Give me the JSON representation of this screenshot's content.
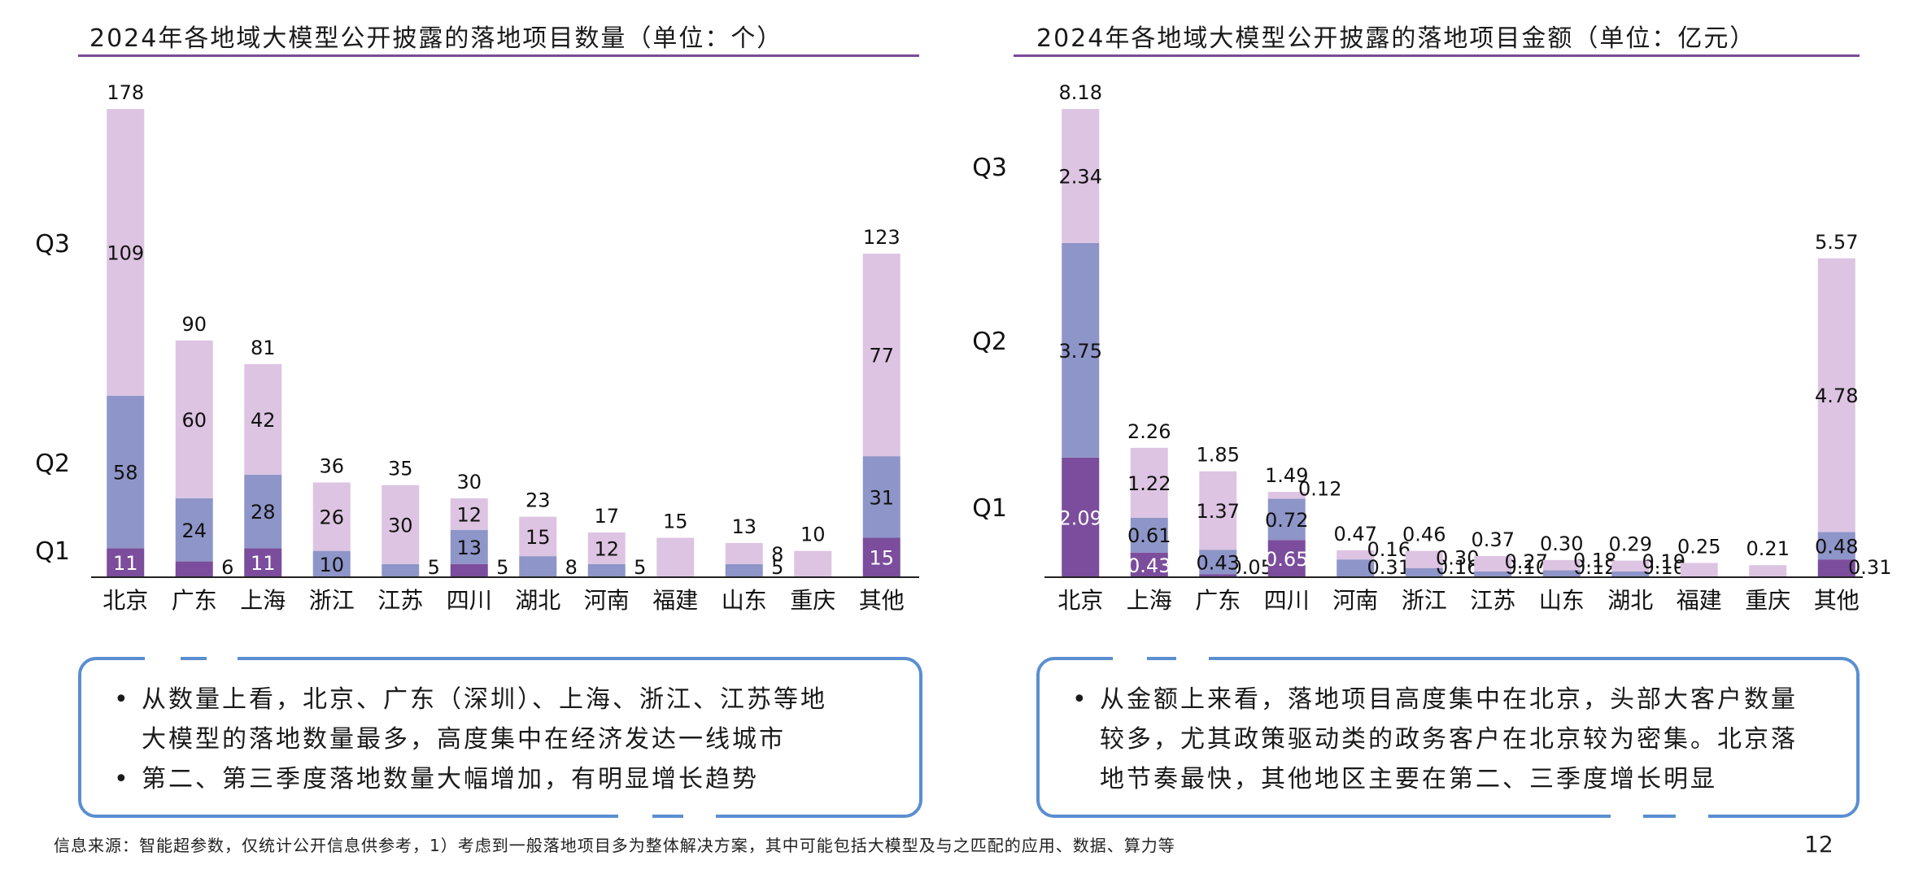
{
  "left_panel": {
    "title": "2024年各地域大模型公开披露的落地项目数量（单位：个）",
    "notes": [
      "从数量上看，北京、广东（深圳）、上海、浙江、江苏等地",
      "大模型的落地数量最多，高度集中在经济发达一线城市",
      "第二、第三季度落地数量大幅增加，有明显增长趋势"
    ]
  },
  "right_panel": {
    "title": "2024年各地域大模型公开披露的落地项目金额（单位：亿元）",
    "notes": [
      "从金额上来看，落地项目高度集中在北京，头部大客户数量",
      "较多，尤其政策驱动类的政务客户在北京较为密集。北京落",
      "地节奏最快，其他地区主要在第二、三季度增长明显"
    ]
  },
  "footer": {
    "source": "信息来源：智能超参数，仅统计公开信息供参考，1）考虑到一般落地项目多为整体解决方案，其中可能包括大模型及与之匹配的应用、数据、算力等",
    "page_number": "12"
  },
  "colors": {
    "Q1": "#7b4d9c",
    "Q2": "#8e95c8",
    "Q3": "#ddc4e2",
    "title_rule": "#7a4a98",
    "box_border": "#5a8fd0"
  },
  "chart_data": [
    {
      "type": "bar",
      "stacked": true,
      "title": "2024年各地域大模型公开披露的落地项目数量（单位：个）",
      "categories": [
        "北京",
        "广东",
        "上海",
        "浙江",
        "江苏",
        "四川",
        "湖北",
        "河南",
        "福建",
        "山东",
        "重庆",
        "其他"
      ],
      "series": [
        {
          "name": "Q1",
          "values": [
            11,
            6,
            11,
            0,
            0,
            5,
            0,
            0,
            0,
            0,
            0,
            15
          ],
          "labels": [
            "11",
            "6",
            "11",
            "",
            "",
            "5",
            "",
            "",
            "",
            "",
            "",
            "15"
          ]
        },
        {
          "name": "Q2",
          "values": [
            58,
            24,
            28,
            10,
            5,
            13,
            8,
            5,
            0,
            5,
            0,
            31
          ],
          "labels": [
            "58",
            "24",
            "28",
            "10",
            "5",
            "13",
            "8",
            "5",
            "",
            "5",
            "",
            "31"
          ]
        },
        {
          "name": "Q3",
          "values": [
            109,
            60,
            42,
            26,
            30,
            12,
            15,
            12,
            15,
            8,
            10,
            77
          ],
          "labels": [
            "109",
            "60",
            "42",
            "26",
            "30",
            "12",
            "15",
            "12",
            "",
            "8",
            "",
            "77"
          ]
        }
      ],
      "totals": [
        "178",
        "90",
        "81",
        "36",
        "35",
        "30",
        "23",
        "17",
        "15",
        "13",
        "10",
        "123"
      ],
      "ylim": [
        0,
        178
      ]
    },
    {
      "type": "bar",
      "stacked": true,
      "title": "2024年各地域大模型公开披露的落地项目金额（单位：亿元）",
      "categories": [
        "北京",
        "上海",
        "广东",
        "四川",
        "河南",
        "浙江",
        "江苏",
        "山东",
        "湖北",
        "福建",
        "重庆",
        "其他"
      ],
      "series": [
        {
          "name": "Q1",
          "values": [
            2.09,
            0.43,
            0.05,
            0.65,
            0.0,
            0.0,
            0.0,
            0.0,
            0.0,
            0.0,
            0.0,
            0.31
          ],
          "labels": [
            "2.09",
            "0.43",
            "0.05",
            "0.65",
            "",
            "",
            "",
            "",
            "",
            "",
            "",
            "0.31"
          ]
        },
        {
          "name": "Q2",
          "values": [
            3.75,
            0.61,
            0.43,
            0.72,
            0.31,
            0.16,
            0.1,
            0.12,
            0.1,
            0.0,
            0.0,
            0.48
          ],
          "labels": [
            "3.75",
            "0.61",
            "0.43",
            "0.72",
            "0.31",
            "0.16",
            "0.10",
            "0.12",
            "0.10",
            "",
            "",
            "0.48"
          ]
        },
        {
          "name": "Q3",
          "values": [
            2.34,
            1.22,
            1.37,
            0.12,
            0.16,
            0.3,
            0.27,
            0.18,
            0.19,
            0.25,
            0.21,
            4.78
          ],
          "labels": [
            "2.34",
            "1.22",
            "1.37",
            "0.12",
            "0.16",
            "0.30",
            "0.27",
            "0.18",
            "0.19",
            "",
            "",
            "4.78"
          ]
        }
      ],
      "totals": [
        "8.18",
        "2.26",
        "1.85",
        "1.49",
        "0.47",
        "0.46",
        "0.37",
        "0.30",
        "0.29",
        "0.25",
        "0.21",
        "5.57"
      ],
      "ylim": [
        0,
        8.18
      ]
    }
  ]
}
